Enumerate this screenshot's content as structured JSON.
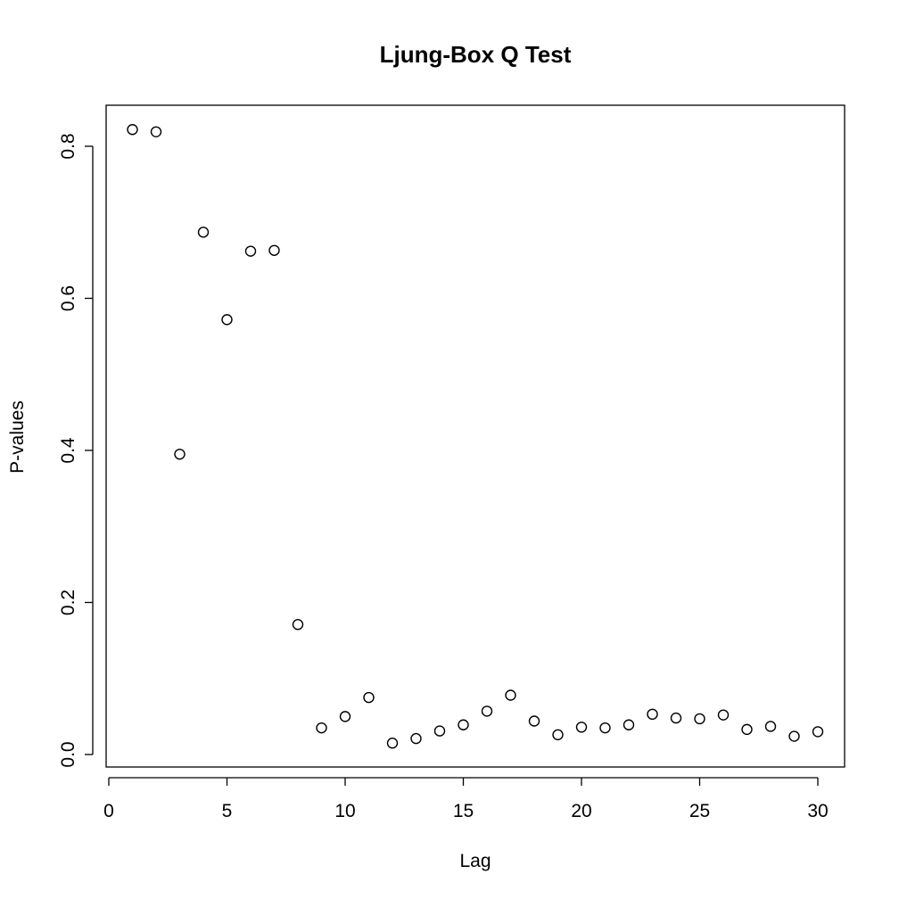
{
  "chart_data": {
    "type": "scatter",
    "title": "Ljung-Box Q Test",
    "xlabel": "Lag",
    "ylabel": "P-values",
    "xlim": [
      0,
      30
    ],
    "ylim": [
      0,
      0.8
    ],
    "x_ticks": [
      0,
      5,
      10,
      15,
      20,
      25,
      30
    ],
    "x_tick_labels": [
      "0",
      "5",
      "10",
      "15",
      "20",
      "25",
      "30"
    ],
    "y_ticks": [
      0,
      0.2,
      0.4,
      0.6,
      0.8
    ],
    "y_tick_labels": [
      "0.0",
      "0.2",
      "0.4",
      "0.6",
      "0.8"
    ],
    "grid": false,
    "marker": "open-circle",
    "x": [
      1,
      2,
      3,
      4,
      5,
      6,
      7,
      8,
      9,
      10,
      11,
      12,
      13,
      14,
      15,
      16,
      17,
      18,
      19,
      20,
      21,
      22,
      23,
      24,
      25,
      26,
      27,
      28,
      29,
      30
    ],
    "y": [
      0.822,
      0.819,
      0.395,
      0.687,
      0.572,
      0.662,
      0.663,
      0.171,
      0.035,
      0.05,
      0.075,
      0.015,
      0.021,
      0.031,
      0.039,
      0.057,
      0.078,
      0.044,
      0.026,
      0.036,
      0.035,
      0.039,
      0.053,
      0.048,
      0.047,
      0.052,
      0.033,
      0.037,
      0.024,
      0.03
    ]
  }
}
